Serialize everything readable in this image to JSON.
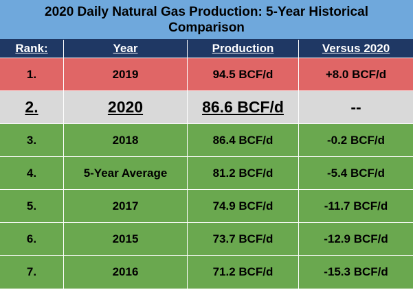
{
  "chart_data": {
    "type": "table",
    "title": "2020 Daily Natural Gas Production: 5-Year Historical Comparison",
    "columns": [
      "Rank:",
      "Year",
      "Production",
      "Versus 2020"
    ],
    "rows": [
      {
        "rank": "1.",
        "year": "2019",
        "production": "94.5 BCF/d",
        "versus": "+8.0 BCF/d",
        "color": "#e06666"
      },
      {
        "rank": "2.",
        "year": "2020",
        "production": "86.6 BCF/d",
        "versus": "--",
        "color": "#d9d9d9",
        "highlight": true
      },
      {
        "rank": "3.",
        "year": "2018",
        "production": "86.4 BCF/d",
        "versus": "-0.2 BCF/d",
        "color": "#6aa84f"
      },
      {
        "rank": "4.",
        "year": "5-Year Average",
        "production": "81.2 BCF/d",
        "versus": "-5.4 BCF/d",
        "color": "#6aa84f"
      },
      {
        "rank": "5.",
        "year": "2017",
        "production": "74.9 BCF/d",
        "versus": "-11.7 BCF/d",
        "color": "#6aa84f"
      },
      {
        "rank": "6.",
        "year": "2015",
        "production": "73.7 BCF/d",
        "versus": "-12.9 BCF/d",
        "color": "#6aa84f"
      },
      {
        "rank": "7.",
        "year": "2016",
        "production": "71.2 BCF/d",
        "versus": "-15.3 BCF/d",
        "color": "#6aa84f"
      }
    ]
  },
  "colors": {
    "title_bg": "#6fa8dc",
    "header_bg": "#1f3864",
    "header_text": "#ffffff"
  }
}
